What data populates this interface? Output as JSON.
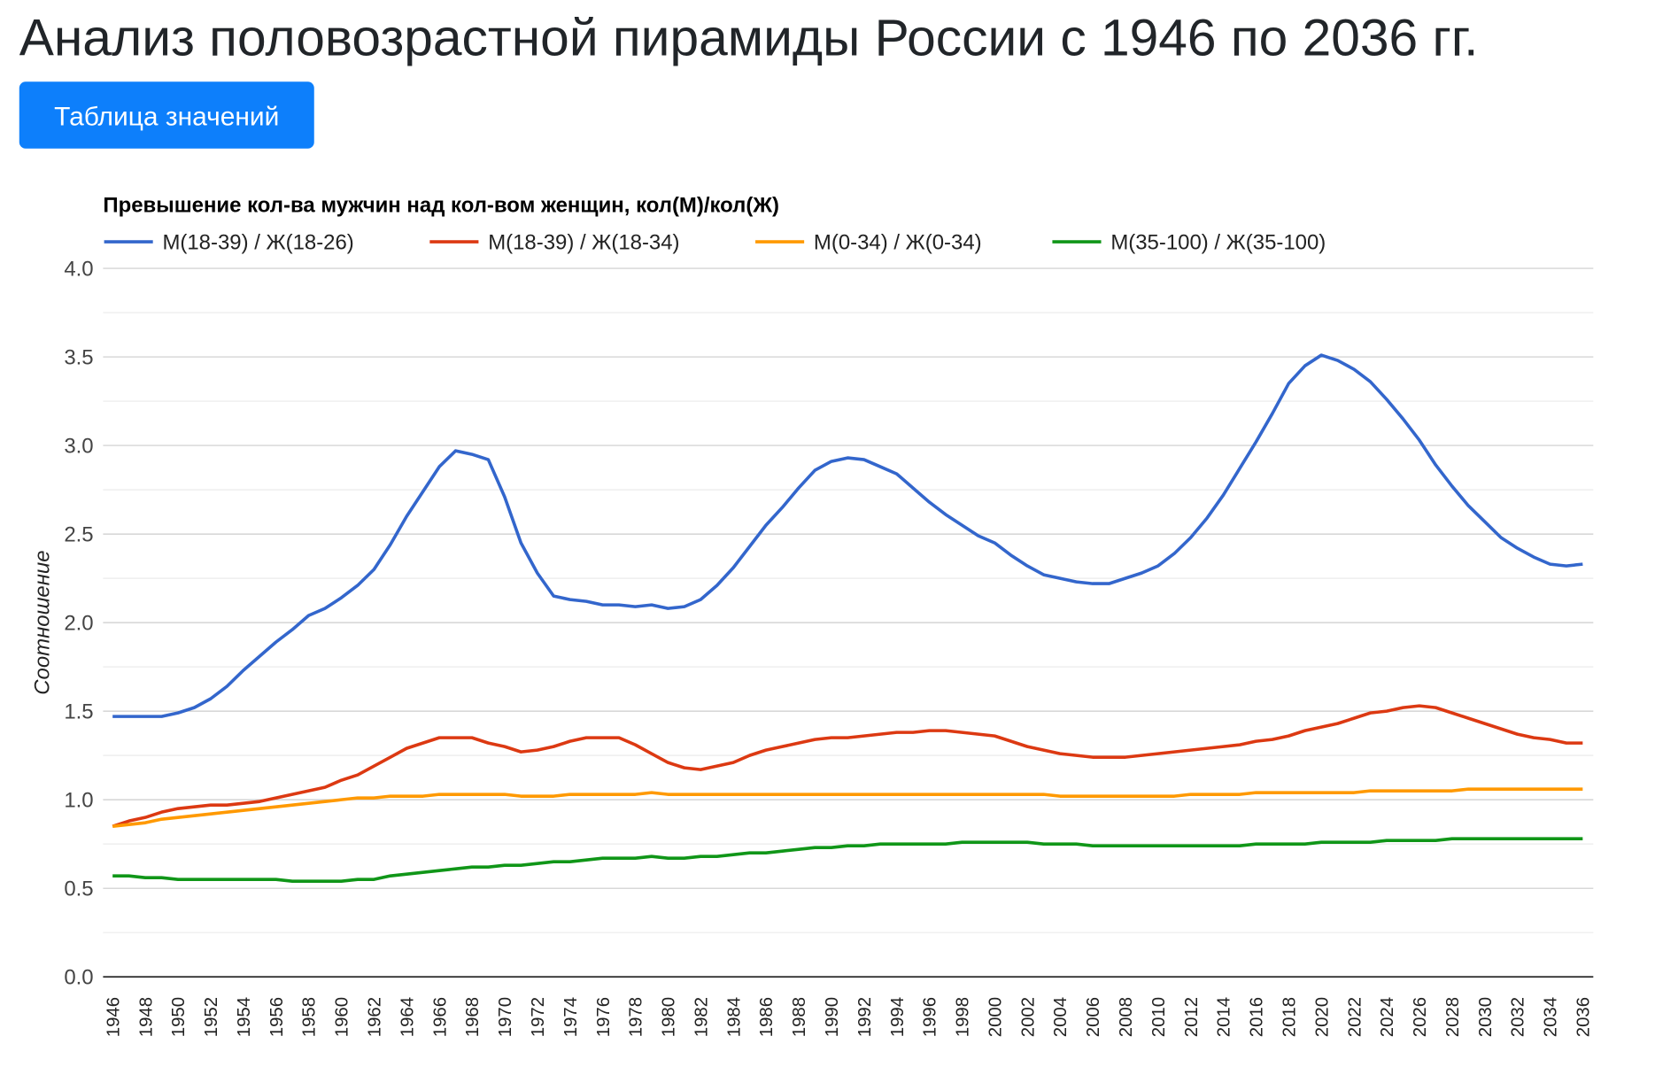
{
  "page": {
    "title": "Анализ половозрастной пирамиды России с 1946 по 2036 гг.",
    "button": "Таблица значений"
  },
  "chart_data": {
    "type": "line",
    "title": "Превышение кол-ва мужчин над кол-вом женщин, кол(М)/кол(Ж)",
    "y_label": "Соотношение",
    "x": [
      1946,
      1947,
      1948,
      1949,
      1950,
      1951,
      1952,
      1953,
      1954,
      1955,
      1956,
      1957,
      1958,
      1959,
      1960,
      1961,
      1962,
      1963,
      1964,
      1965,
      1966,
      1967,
      1968,
      1969,
      1970,
      1971,
      1972,
      1973,
      1974,
      1975,
      1976,
      1977,
      1978,
      1979,
      1980,
      1981,
      1982,
      1983,
      1984,
      1985,
      1986,
      1987,
      1988,
      1989,
      1990,
      1991,
      1992,
      1993,
      1994,
      1995,
      1996,
      1997,
      1998,
      1999,
      2000,
      2001,
      2002,
      2003,
      2004,
      2005,
      2006,
      2007,
      2008,
      2009,
      2010,
      2011,
      2012,
      2013,
      2014,
      2015,
      2016,
      2017,
      2018,
      2019,
      2020,
      2021,
      2022,
      2023,
      2024,
      2025,
      2026,
      2027,
      2028,
      2029,
      2030,
      2031,
      2032,
      2033,
      2034,
      2035,
      2036
    ],
    "series": [
      {
        "name": "М(18-39) / Ж(18-26)",
        "color": "#3366cc",
        "values": [
          1.47,
          1.47,
          1.47,
          1.47,
          1.49,
          1.52,
          1.57,
          1.64,
          1.73,
          1.81,
          1.89,
          1.96,
          2.04,
          2.08,
          2.14,
          2.21,
          2.3,
          2.44,
          2.6,
          2.74,
          2.88,
          2.97,
          2.95,
          2.92,
          2.71,
          2.45,
          2.28,
          2.15,
          2.13,
          2.12,
          2.1,
          2.1,
          2.09,
          2.1,
          2.08,
          2.09,
          2.13,
          2.21,
          2.31,
          2.43,
          2.55,
          2.65,
          2.76,
          2.86,
          2.91,
          2.93,
          2.92,
          2.88,
          2.84,
          2.76,
          2.68,
          2.61,
          2.55,
          2.49,
          2.45,
          2.38,
          2.32,
          2.27,
          2.25,
          2.23,
          2.22,
          2.22,
          2.25,
          2.28,
          2.32,
          2.39,
          2.48,
          2.59,
          2.72,
          2.87,
          3.02,
          3.18,
          3.35,
          3.45,
          3.51,
          3.48,
          3.43,
          3.36,
          3.26,
          3.15,
          3.03,
          2.89,
          2.77,
          2.66,
          2.57,
          2.48,
          2.42,
          2.37,
          2.33,
          2.32,
          2.33
        ]
      },
      {
        "name": "М(18-39) / Ж(18-34)",
        "color": "#dc3912",
        "values": [
          0.85,
          0.88,
          0.9,
          0.93,
          0.95,
          0.96,
          0.97,
          0.97,
          0.98,
          0.99,
          1.01,
          1.03,
          1.05,
          1.07,
          1.11,
          1.14,
          1.19,
          1.24,
          1.29,
          1.32,
          1.35,
          1.35,
          1.35,
          1.32,
          1.3,
          1.27,
          1.28,
          1.3,
          1.33,
          1.35,
          1.35,
          1.35,
          1.31,
          1.26,
          1.21,
          1.18,
          1.17,
          1.19,
          1.21,
          1.25,
          1.28,
          1.3,
          1.32,
          1.34,
          1.35,
          1.35,
          1.36,
          1.37,
          1.38,
          1.38,
          1.39,
          1.39,
          1.38,
          1.37,
          1.36,
          1.33,
          1.3,
          1.28,
          1.26,
          1.25,
          1.24,
          1.24,
          1.24,
          1.25,
          1.26,
          1.27,
          1.28,
          1.29,
          1.3,
          1.31,
          1.33,
          1.34,
          1.36,
          1.39,
          1.41,
          1.43,
          1.46,
          1.49,
          1.5,
          1.52,
          1.53,
          1.52,
          1.49,
          1.46,
          1.43,
          1.4,
          1.37,
          1.35,
          1.34,
          1.32,
          1.32
        ]
      },
      {
        "name": "М(0-34) / Ж(0-34)",
        "color": "#ff9900",
        "values": [
          0.85,
          0.86,
          0.87,
          0.89,
          0.9,
          0.91,
          0.92,
          0.93,
          0.94,
          0.95,
          0.96,
          0.97,
          0.98,
          0.99,
          1.0,
          1.01,
          1.01,
          1.02,
          1.02,
          1.02,
          1.03,
          1.03,
          1.03,
          1.03,
          1.03,
          1.02,
          1.02,
          1.02,
          1.03,
          1.03,
          1.03,
          1.03,
          1.03,
          1.04,
          1.03,
          1.03,
          1.03,
          1.03,
          1.03,
          1.03,
          1.03,
          1.03,
          1.03,
          1.03,
          1.03,
          1.03,
          1.03,
          1.03,
          1.03,
          1.03,
          1.03,
          1.03,
          1.03,
          1.03,
          1.03,
          1.03,
          1.03,
          1.03,
          1.02,
          1.02,
          1.02,
          1.02,
          1.02,
          1.02,
          1.02,
          1.02,
          1.03,
          1.03,
          1.03,
          1.03,
          1.04,
          1.04,
          1.04,
          1.04,
          1.04,
          1.04,
          1.04,
          1.05,
          1.05,
          1.05,
          1.05,
          1.05,
          1.05,
          1.06,
          1.06,
          1.06,
          1.06,
          1.06,
          1.06,
          1.06,
          1.06
        ]
      },
      {
        "name": "М(35-100) / Ж(35-100)",
        "color": "#109618",
        "values": [
          0.57,
          0.57,
          0.56,
          0.56,
          0.55,
          0.55,
          0.55,
          0.55,
          0.55,
          0.55,
          0.55,
          0.54,
          0.54,
          0.54,
          0.54,
          0.55,
          0.55,
          0.57,
          0.58,
          0.59,
          0.6,
          0.61,
          0.62,
          0.62,
          0.63,
          0.63,
          0.64,
          0.65,
          0.65,
          0.66,
          0.67,
          0.67,
          0.67,
          0.68,
          0.67,
          0.67,
          0.68,
          0.68,
          0.69,
          0.7,
          0.7,
          0.71,
          0.72,
          0.73,
          0.73,
          0.74,
          0.74,
          0.75,
          0.75,
          0.75,
          0.75,
          0.75,
          0.76,
          0.76,
          0.76,
          0.76,
          0.76,
          0.75,
          0.75,
          0.75,
          0.74,
          0.74,
          0.74,
          0.74,
          0.74,
          0.74,
          0.74,
          0.74,
          0.74,
          0.74,
          0.75,
          0.75,
          0.75,
          0.75,
          0.76,
          0.76,
          0.76,
          0.76,
          0.77,
          0.77,
          0.77,
          0.77,
          0.78,
          0.78,
          0.78,
          0.78,
          0.78,
          0.78,
          0.78,
          0.78,
          0.78
        ]
      }
    ],
    "xlim": [
      1946,
      2036
    ],
    "xticks": [
      1946,
      1948,
      1950,
      1952,
      1954,
      1956,
      1958,
      1960,
      1962,
      1964,
      1966,
      1968,
      1970,
      1972,
      1974,
      1976,
      1978,
      1980,
      1982,
      1984,
      1986,
      1988,
      1990,
      1992,
      1994,
      1996,
      1998,
      2000,
      2002,
      2004,
      2006,
      2008,
      2010,
      2012,
      2014,
      2016,
      2018,
      2020,
      2022,
      2024,
      2026,
      2028,
      2030,
      2032,
      2034,
      2036
    ],
    "ylim": [
      0,
      4
    ],
    "yticks": [
      {
        "value": 0,
        "label": "0.0"
      },
      0.5,
      {
        "value": 1,
        "label": "1.0"
      },
      1.5,
      {
        "value": 2,
        "label": "2.0"
      },
      2.5,
      {
        "value": 3,
        "label": "3.0"
      },
      3.5,
      {
        "value": 4,
        "label": "4.0"
      }
    ],
    "y_minor_ticks": [
      0.25,
      0.75,
      1.25,
      1.75,
      2.25,
      2.75,
      3.25,
      3.75
    ],
    "grid": true,
    "legend": "top"
  }
}
